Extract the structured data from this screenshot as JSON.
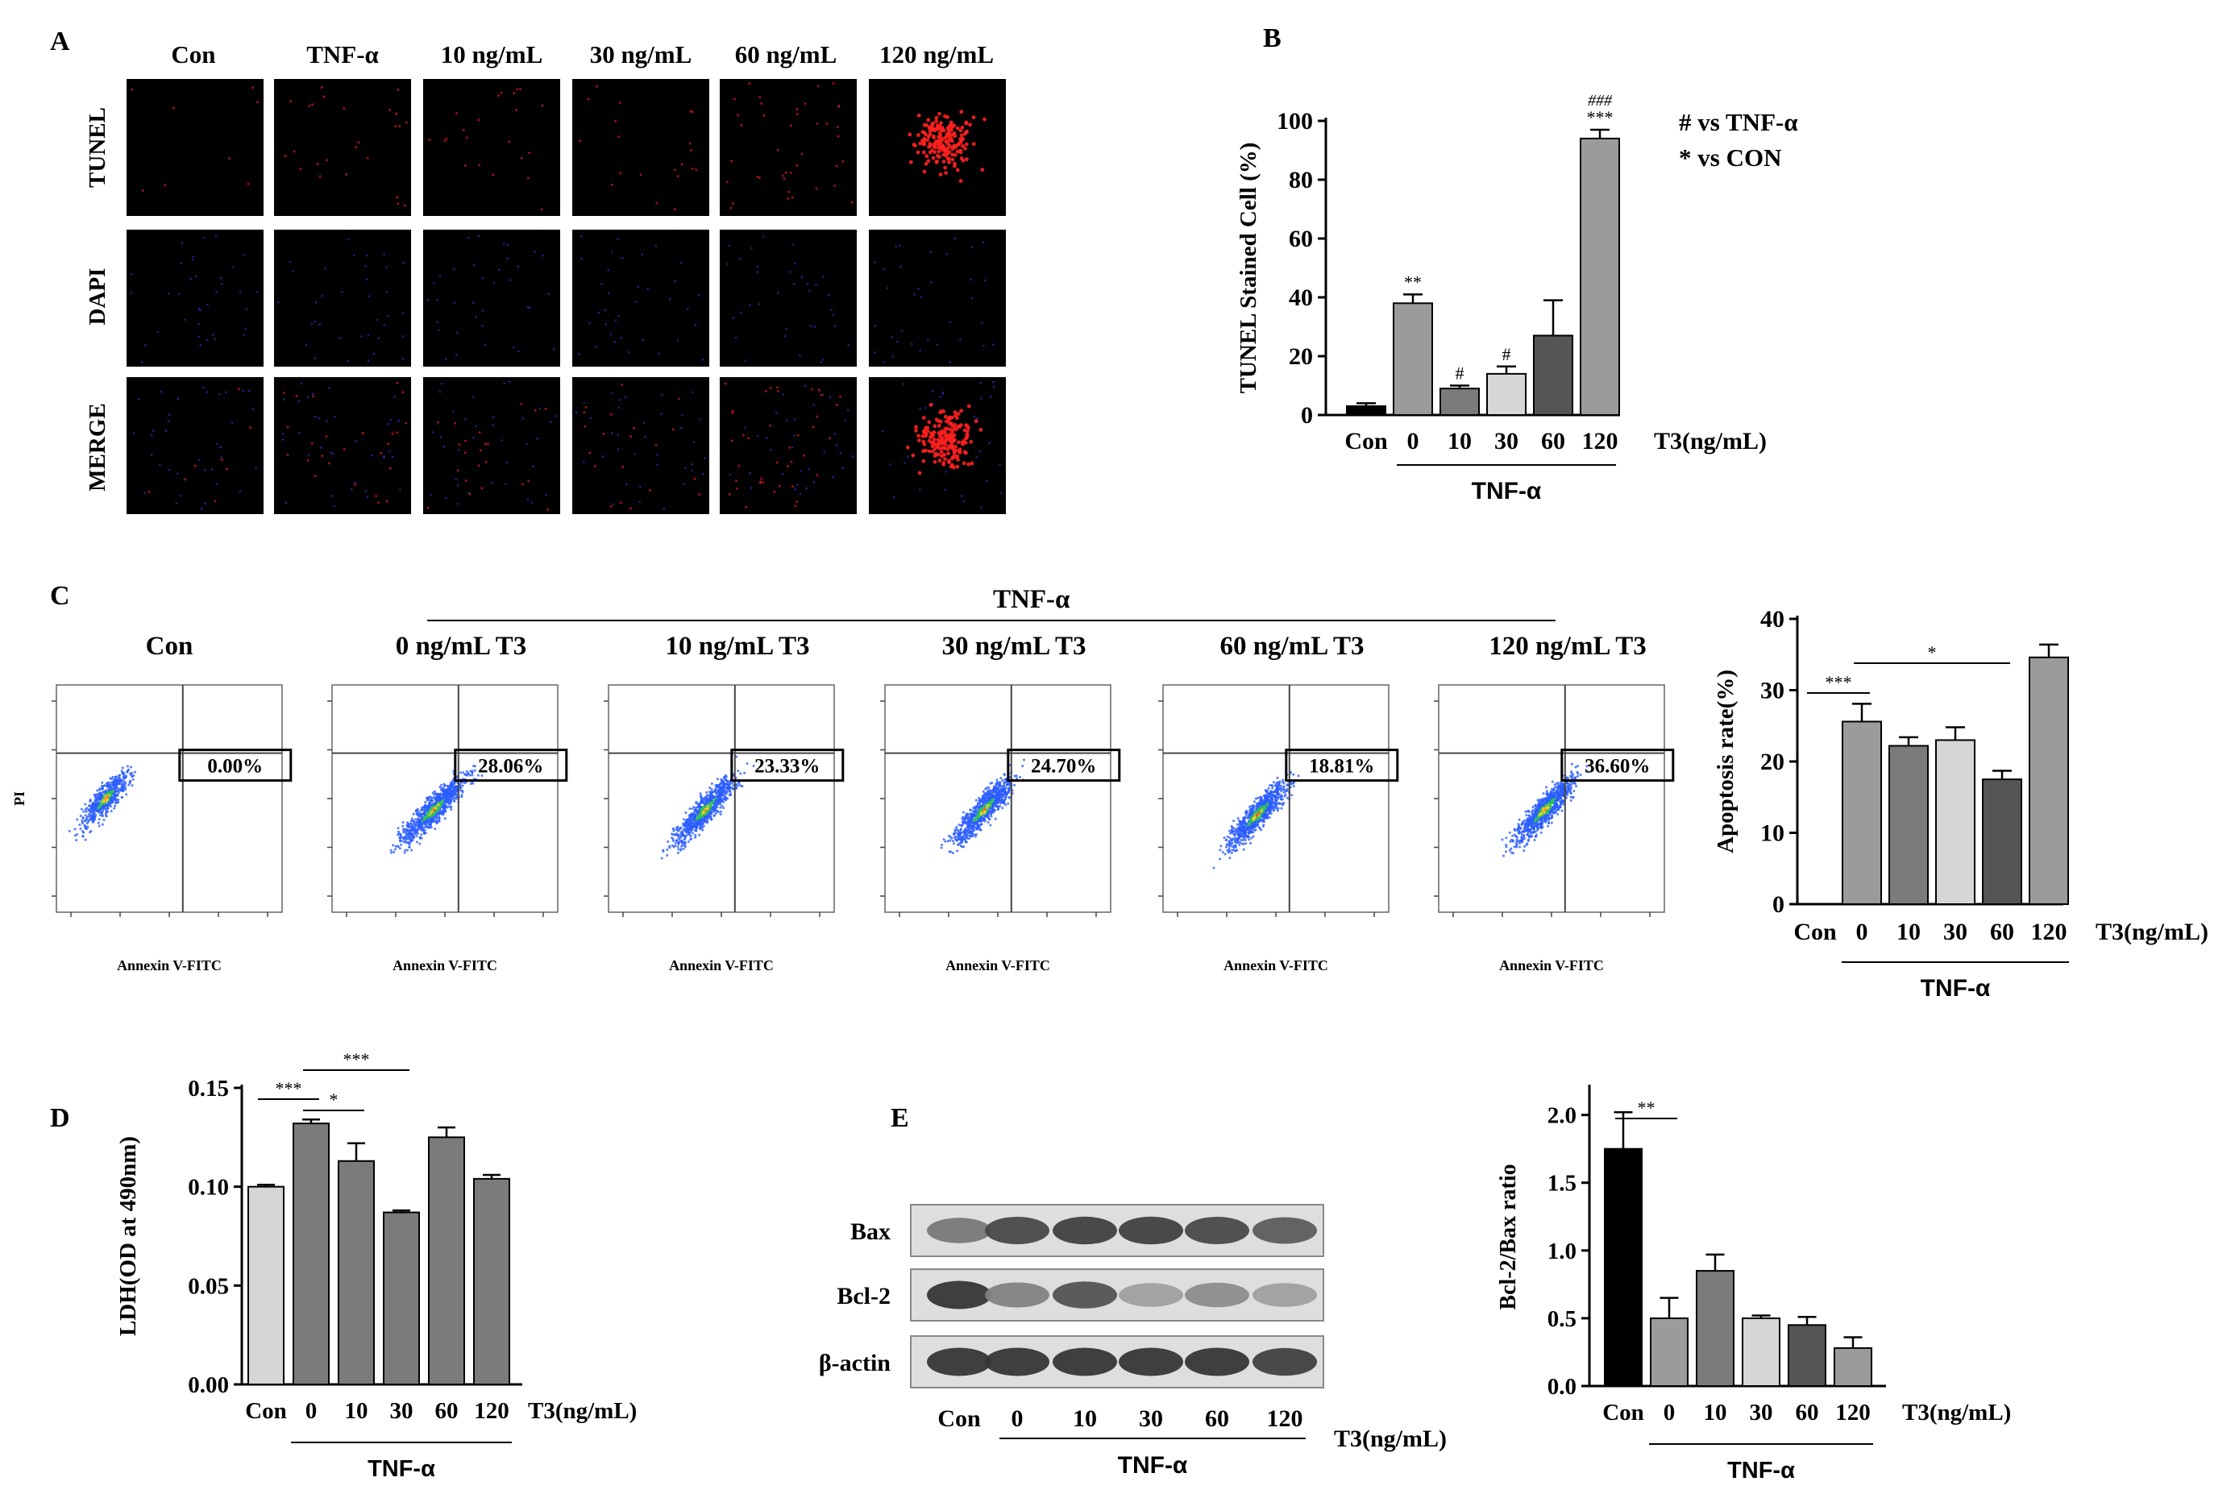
{
  "colors": {
    "black": "#000000",
    "light": "#d6d6d6",
    "mid": "#9b9b9b",
    "midDark": "#7b7b7b",
    "dark": "#555555",
    "tunelRed": "#ff2020",
    "dapiBlue": "#3a3aff"
  },
  "panelA": {
    "letter": "A",
    "columns": [
      "Con",
      "TNF-α",
      "10 ng/mL",
      "30 ng/mL",
      "60 ng/mL",
      "120 ng/mL"
    ],
    "rows": [
      "TUNEL",
      "DAPI",
      "MERGE"
    ]
  },
  "panelB": {
    "letter": "B",
    "legend": [
      "# vs TNF-α",
      "* vs CON"
    ],
    "group_label": "TNF-α",
    "unit_label": "T3(ng/mL)"
  },
  "panelC": {
    "letter": "C",
    "header": "TNF-α",
    "plot_titles": [
      "Con",
      "0 ng/mL  T3",
      "10 ng/mL T3",
      "30 ng/mL T3",
      "60 ng/mL T3",
      "120 ng/mL T3"
    ],
    "gate_percents": [
      "0.00%",
      "28.06%",
      "23.33%",
      "24.70%",
      "18.81%",
      "36.60%"
    ],
    "x_axis_label": "Annexin V-FITC",
    "y_axis_label": "PI",
    "group_label": "TNF-α",
    "unit_label": "T3(ng/mL)"
  },
  "panelD": {
    "letter": "D",
    "group_label": "TNF-α",
    "unit_label": "T3(ng/mL)"
  },
  "panelE": {
    "letter": "E",
    "blot_rows": [
      "Bax",
      "Bcl-2",
      "β-actin"
    ],
    "lane_labels": [
      "Con",
      "0",
      "10",
      "30",
      "60",
      "120"
    ],
    "group_label": "TNF-α",
    "unit_label": "T3(ng/mL)",
    "bax_intensity": [
      0.55,
      0.8,
      0.85,
      0.85,
      0.8,
      0.7
    ],
    "bcl2_intensity": [
      0.9,
      0.5,
      0.75,
      0.35,
      0.45,
      0.35
    ],
    "actin_intensity": [
      0.9,
      0.9,
      0.9,
      0.9,
      0.9,
      0.85
    ]
  },
  "chart_data": [
    {
      "id": "B",
      "type": "bar",
      "title": "",
      "categories": [
        "Con",
        "0",
        "10",
        "30",
        "60",
        "120"
      ],
      "values": [
        3,
        38,
        9,
        14,
        27,
        94
      ],
      "errors": [
        1,
        3,
        1,
        2.5,
        12,
        3
      ],
      "significance": [
        "",
        "**",
        "#",
        "#",
        "",
        "***"
      ],
      "significance_top": [
        "",
        "",
        "",
        "",
        "",
        "###"
      ],
      "ylabel": "TUNEL Stained Cell (%)",
      "xlabel": "T3(ng/mL)",
      "ylim": [
        0,
        100
      ],
      "yticks": [
        0,
        20,
        40,
        60,
        80,
        100
      ],
      "bar_colors": [
        "#000000",
        "#9b9b9b",
        "#7b7b7b",
        "#d6d6d6",
        "#555555",
        "#9b9b9b"
      ]
    },
    {
      "id": "C",
      "type": "bar",
      "categories": [
        "Con",
        "0",
        "10",
        "30",
        "60",
        "120"
      ],
      "values": [
        0,
        25.6,
        22.2,
        23,
        17.5,
        34.6
      ],
      "errors": [
        0,
        2.5,
        1.2,
        1.8,
        1.2,
        1.8
      ],
      "ylabel": "Apoptosis rate(%)",
      "xlabel": "T3(ng/mL)",
      "ylim": [
        0,
        40
      ],
      "yticks": [
        0,
        10,
        20,
        30,
        40
      ],
      "brackets": [
        {
          "from": 0,
          "to": 1,
          "label": "***"
        },
        {
          "from": 1,
          "to": 4,
          "label": "*"
        }
      ],
      "bar_colors": [
        "#000000",
        "#9b9b9b",
        "#7b7b7b",
        "#d6d6d6",
        "#555555",
        "#9b9b9b"
      ]
    },
    {
      "id": "D",
      "type": "bar",
      "categories": [
        "Con",
        "0",
        "10",
        "30",
        "60",
        "120"
      ],
      "values": [
        0.1,
        0.132,
        0.113,
        0.087,
        0.125,
        0.104
      ],
      "errors": [
        0.001,
        0.002,
        0.009,
        0.001,
        0.005,
        0.002
      ],
      "ylabel": "LDH(OD at 490nm)",
      "xlabel": "T3(ng/mL)",
      "ylim": [
        0,
        0.15
      ],
      "yticks": [
        0.0,
        0.05,
        0.1,
        0.15
      ],
      "ytick_labels": [
        "0.00",
        "0.05",
        "0.10",
        "0.15"
      ],
      "brackets": [
        {
          "from": 0,
          "to": 1,
          "label": "***"
        },
        {
          "from": 1,
          "to": 2,
          "label": "*"
        },
        {
          "from": 1,
          "to": 3,
          "label": "***"
        }
      ],
      "bar_colors": [
        "#d6d6d6",
        "#7b7b7b",
        "#7b7b7b",
        "#7b7b7b",
        "#7b7b7b",
        "#7b7b7b"
      ]
    },
    {
      "id": "E",
      "type": "bar",
      "categories": [
        "Con",
        "0",
        "10",
        "30",
        "60",
        "120"
      ],
      "values": [
        1.75,
        0.5,
        0.85,
        0.5,
        0.45,
        0.28
      ],
      "errors": [
        0.27,
        0.15,
        0.12,
        0.02,
        0.06,
        0.08
      ],
      "ylabel": "Bcl-2/Bax ratio",
      "xlabel": "T3(ng/mL)",
      "ylim": [
        0,
        2.2
      ],
      "yticks": [
        0.0,
        0.5,
        1.0,
        1.5,
        2.0
      ],
      "ytick_labels": [
        "0.0",
        "0.5",
        "1.0",
        "1.5",
        "2.0"
      ],
      "brackets": [
        {
          "from": 0,
          "to": 1,
          "label": "**"
        }
      ],
      "bar_colors": [
        "#000000",
        "#9b9b9b",
        "#7b7b7b",
        "#d6d6d6",
        "#555555",
        "#9b9b9b"
      ]
    }
  ]
}
